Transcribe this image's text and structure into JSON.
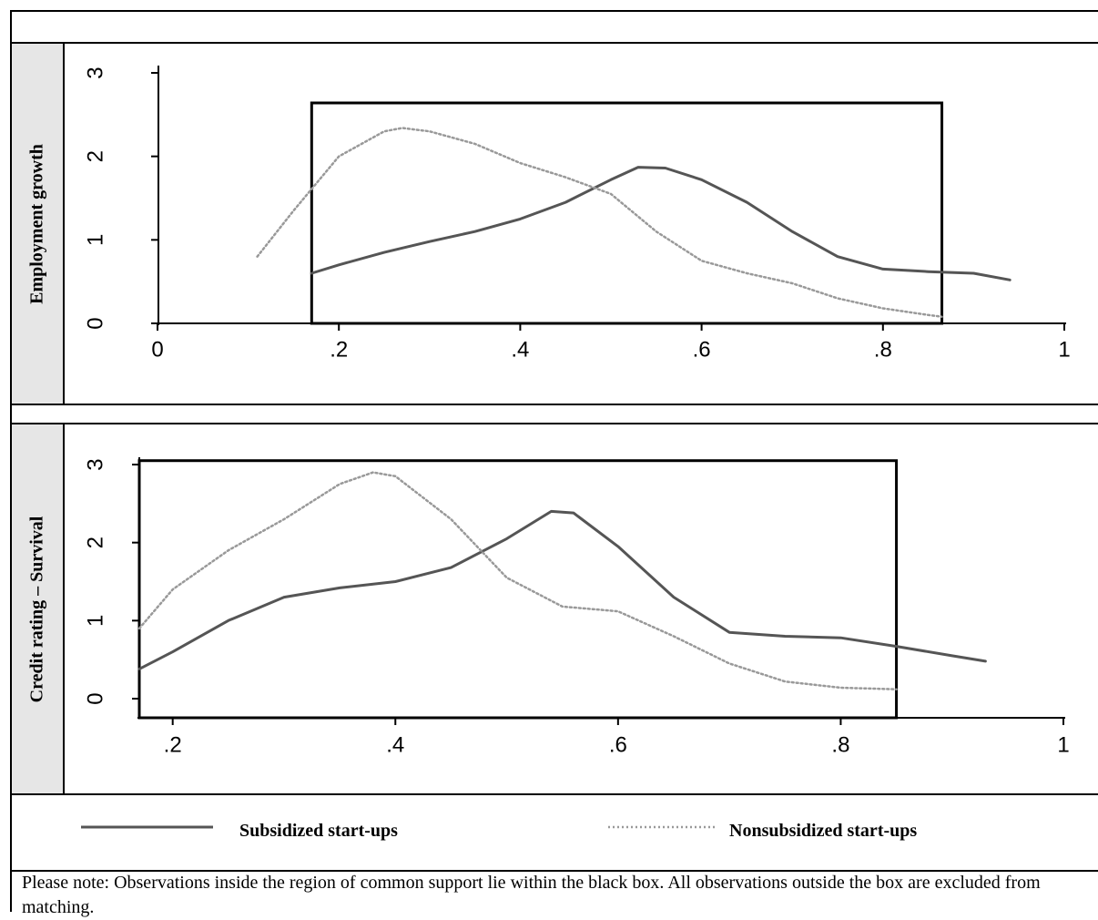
{
  "panels": [
    {
      "ylabel": "Employment  growth",
      "chart_data": {
        "type": "line",
        "xlim": [
          0,
          1
        ],
        "ylim": [
          0,
          3
        ],
        "x_ticks": [
          "0",
          ".2",
          ".4",
          ".6",
          ".8",
          "1"
        ],
        "y_ticks": [
          "0",
          "1",
          "2",
          "3"
        ],
        "grid": false,
        "common_support_box": {
          "x_range": [
            0.17,
            0.865
          ],
          "y_range": [
            0,
            2.64
          ]
        },
        "series": [
          {
            "name": "Subsidized start-ups",
            "style": "solid",
            "color": "#555555",
            "points": [
              [
                0.17,
                0.6
              ],
              [
                0.2,
                0.7
              ],
              [
                0.25,
                0.85
              ],
              [
                0.3,
                0.98
              ],
              [
                0.35,
                1.1
              ],
              [
                0.4,
                1.25
              ],
              [
                0.45,
                1.45
              ],
              [
                0.5,
                1.72
              ],
              [
                0.53,
                1.87
              ],
              [
                0.56,
                1.86
              ],
              [
                0.6,
                1.72
              ],
              [
                0.65,
                1.45
              ],
              [
                0.7,
                1.1
              ],
              [
                0.75,
                0.8
              ],
              [
                0.8,
                0.65
              ],
              [
                0.85,
                0.62
              ],
              [
                0.9,
                0.6
              ],
              [
                0.94,
                0.52
              ]
            ]
          },
          {
            "name": "Nonsubsidized start-ups",
            "style": "dotted",
            "color": "#999999",
            "points": [
              [
                0.11,
                0.8
              ],
              [
                0.15,
                1.35
              ],
              [
                0.2,
                2.0
              ],
              [
                0.25,
                2.3
              ],
              [
                0.27,
                2.34
              ],
              [
                0.3,
                2.3
              ],
              [
                0.35,
                2.15
              ],
              [
                0.4,
                1.92
              ],
              [
                0.45,
                1.75
              ],
              [
                0.5,
                1.55
              ],
              [
                0.55,
                1.1
              ],
              [
                0.6,
                0.75
              ],
              [
                0.65,
                0.6
              ],
              [
                0.7,
                0.48
              ],
              [
                0.75,
                0.3
              ],
              [
                0.8,
                0.18
              ],
              [
                0.85,
                0.1
              ],
              [
                0.865,
                0.08
              ]
            ]
          }
        ]
      }
    },
    {
      "ylabel": "Credit rating – Survival",
      "chart_data": {
        "type": "line",
        "xlim": [
          0.17,
          1
        ],
        "ylim": [
          0,
          3
        ],
        "x_ticks": [
          ".2",
          ".4",
          ".6",
          ".8",
          "1"
        ],
        "x_tick_values": [
          0.2,
          0.4,
          0.6,
          0.8,
          1.0
        ],
        "y_ticks": [
          "0",
          "1",
          "2",
          "3"
        ],
        "grid": false,
        "common_support_box": {
          "x_range": [
            0.17,
            0.85
          ],
          "y_range": [
            0,
            3.05
          ]
        },
        "series": [
          {
            "name": "Subsidized start-ups",
            "style": "solid",
            "color": "#555555",
            "points": [
              [
                0.17,
                0.38
              ],
              [
                0.2,
                0.6
              ],
              [
                0.25,
                1.0
              ],
              [
                0.3,
                1.3
              ],
              [
                0.35,
                1.42
              ],
              [
                0.4,
                1.5
              ],
              [
                0.45,
                1.68
              ],
              [
                0.5,
                2.05
              ],
              [
                0.54,
                2.4
              ],
              [
                0.56,
                2.38
              ],
              [
                0.6,
                1.95
              ],
              [
                0.65,
                1.3
              ],
              [
                0.7,
                0.85
              ],
              [
                0.75,
                0.8
              ],
              [
                0.8,
                0.78
              ],
              [
                0.85,
                0.67
              ],
              [
                0.9,
                0.55
              ],
              [
                0.93,
                0.48
              ]
            ]
          },
          {
            "name": "Nonsubsidized start-ups",
            "style": "dotted",
            "color": "#999999",
            "points": [
              [
                0.17,
                0.9
              ],
              [
                0.2,
                1.4
              ],
              [
                0.25,
                1.9
              ],
              [
                0.3,
                2.3
              ],
              [
                0.35,
                2.75
              ],
              [
                0.38,
                2.9
              ],
              [
                0.4,
                2.85
              ],
              [
                0.45,
                2.3
              ],
              [
                0.5,
                1.55
              ],
              [
                0.55,
                1.18
              ],
              [
                0.6,
                1.12
              ],
              [
                0.65,
                0.8
              ],
              [
                0.7,
                0.45
              ],
              [
                0.75,
                0.22
              ],
              [
                0.8,
                0.14
              ],
              [
                0.85,
                0.12
              ]
            ]
          }
        ]
      }
    }
  ],
  "legend": {
    "items": [
      {
        "label": "Subsidized start-ups",
        "style": "solid",
        "color": "#555555"
      },
      {
        "label": "Nonsubsidized start-ups",
        "style": "dotted",
        "color": "#999999"
      }
    ]
  },
  "note": "Please note: Observations inside the region of common support lie within the black box. All observations outside the box are excluded from matching."
}
